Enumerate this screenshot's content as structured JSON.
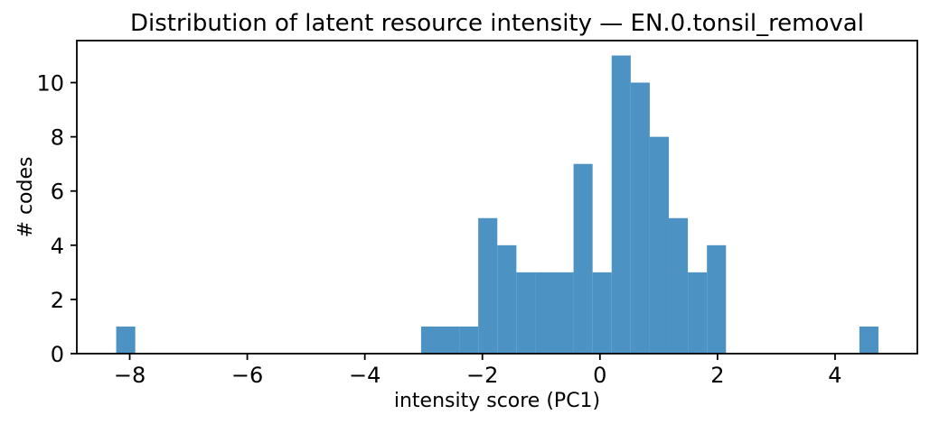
{
  "chart_data": {
    "type": "bar",
    "subtype": "histogram",
    "title": "Distribution of latent resource intensity — EN.0.tonsil_removal",
    "xlabel": "intensity score (PC1)",
    "ylabel": "# codes",
    "bar_color": "#4c92c3",
    "axis_color": "#000000",
    "background_color": "#ffffff",
    "grid": false,
    "legend": "none",
    "xlim": [
      -8.9,
      5.4
    ],
    "ylim": [
      0,
      11.55
    ],
    "xticks": [
      {
        "value": -8,
        "label": "−8"
      },
      {
        "value": -6,
        "label": "−6"
      },
      {
        "value": -4,
        "label": "−4"
      },
      {
        "value": -2,
        "label": "−2"
      },
      {
        "value": 0,
        "label": "0"
      },
      {
        "value": 2,
        "label": "2"
      },
      {
        "value": 4,
        "label": "4"
      }
    ],
    "yticks": [
      {
        "value": 0,
        "label": "0"
      },
      {
        "value": 2,
        "label": "2"
      },
      {
        "value": 4,
        "label": "4"
      },
      {
        "value": 6,
        "label": "6"
      },
      {
        "value": 8,
        "label": "8"
      },
      {
        "value": 10,
        "label": "10"
      }
    ],
    "bins": {
      "start": -8.23,
      "width": 0.3242,
      "counts": [
        1,
        0,
        0,
        0,
        0,
        0,
        0,
        0,
        0,
        0,
        0,
        0,
        0,
        0,
        0,
        0,
        1,
        1,
        1,
        5,
        4,
        3,
        3,
        3,
        7,
        3,
        11,
        10,
        8,
        5,
        3,
        4,
        0,
        0,
        0,
        0,
        0,
        0,
        0,
        1
      ]
    }
  }
}
